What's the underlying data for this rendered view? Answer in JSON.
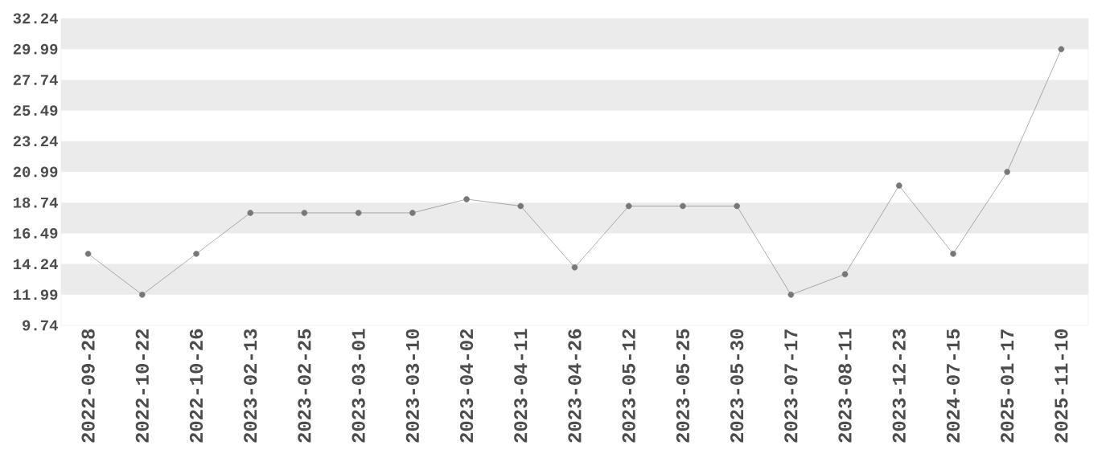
{
  "chart_data": {
    "type": "line",
    "categories": [
      "2022-09-28",
      "2022-10-22",
      "2022-10-26",
      "2023-02-13",
      "2023-02-25",
      "2023-03-01",
      "2023-03-10",
      "2023-04-02",
      "2023-04-11",
      "2023-04-26",
      "2023-05-12",
      "2023-05-25",
      "2023-05-30",
      "2023-07-17",
      "2023-08-11",
      "2023-12-23",
      "2024-07-15",
      "2025-01-17",
      "2025-11-10"
    ],
    "series": [
      {
        "color": "#777777",
        "values": [
          14.99,
          11.99,
          14.99,
          17.99,
          17.99,
          17.99,
          17.99,
          18.99,
          18.49,
          13.99,
          18.49,
          18.49,
          18.49,
          11.99,
          13.49,
          19.99,
          14.99,
          20.99,
          29.99
        ]
      }
    ],
    "ylim": [
      9.74,
      32.24
    ],
    "yticks": [
      9.74,
      11.99,
      14.24,
      16.49,
      18.74,
      20.99,
      23.24,
      25.49,
      27.74,
      29.99,
      32.24
    ],
    "bands": [
      {
        "axis": "y",
        "from": 11.99,
        "to": 14.24,
        "color": "#ebebeb"
      },
      {
        "axis": "y",
        "from": 16.49,
        "to": 18.74,
        "color": "#ebebeb"
      },
      {
        "axis": "y",
        "from": 20.99,
        "to": 23.24,
        "color": "#ebebeb"
      },
      {
        "axis": "y",
        "from": 25.49,
        "to": 27.74,
        "color": "#ebebeb"
      },
      {
        "axis": "y",
        "from": 29.99,
        "to": 32.24,
        "color": "#ebebeb"
      }
    ],
    "marker": "circle",
    "line_style": "solid"
  }
}
